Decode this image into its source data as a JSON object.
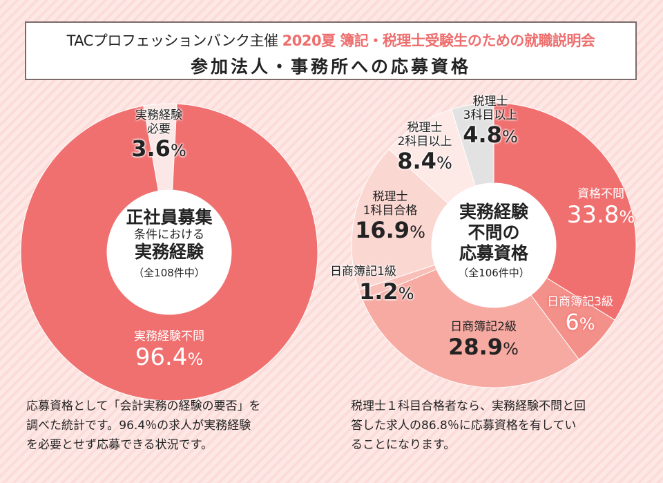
{
  "header": {
    "sponsor": "TACプロフェッションバンク主催",
    "event": "2020夏 簿記・税理士受験生のための就職説明会",
    "subtitle": "参加法人・事務所への応募資格"
  },
  "colors": {
    "accent": "#ee6e6e",
    "slice_main": "#f07070",
    "slice_light": "#fbe7e5",
    "slice_grey": "#e2e2e2"
  },
  "chart_data": [
    {
      "type": "pie",
      "variant": "donut",
      "title": "正社員募集 条件における 実務経験",
      "center": {
        "line1": "正社員募集",
        "line2": "条件における",
        "line3": "実務経験",
        "note": "（全108件中）"
      },
      "total_count": 108,
      "slices": [
        {
          "label": "実務経験不問",
          "value": 96.4,
          "display": "96.4",
          "color": "#f07070",
          "text_style": "light"
        },
        {
          "label": "実務経験必要",
          "label_lines": [
            "実務経験",
            "必要"
          ],
          "value": 3.6,
          "display": "3.6",
          "color": "#fbe7e5",
          "text_style": "dark"
        }
      ],
      "unit": "%"
    },
    {
      "type": "pie",
      "variant": "donut",
      "title": "実務経験不問の応募資格",
      "center": {
        "line1": "実務経験",
        "line2": "不問の",
        "line3": "応募資格",
        "note": "（全106件中）"
      },
      "total_count": 106,
      "slices": [
        {
          "label": "資格不問",
          "label_lines": [
            "資格不問"
          ],
          "value": 33.8,
          "display": "33.8",
          "color": "#f07070",
          "text_style": "light"
        },
        {
          "label": "日商簿記3級",
          "label_lines": [
            "日商簿記3級"
          ],
          "value": 6.0,
          "display": "6",
          "color": "#f39089",
          "text_style": "light"
        },
        {
          "label": "日商簿記2級",
          "label_lines": [
            "日商簿記2級"
          ],
          "value": 28.9,
          "display": "28.9",
          "color": "#f6aaa2",
          "text_style": "dark"
        },
        {
          "label": "日商簿記1級",
          "label_lines": [
            "日商簿記1級"
          ],
          "value": 1.2,
          "display": "1.2",
          "color": "#f8bfb8",
          "text_style": "dark"
        },
        {
          "label": "税理士1科目合格",
          "label_lines": [
            "税理士",
            "1科目合格"
          ],
          "value": 16.9,
          "display": "16.9",
          "color": "#fbd7d2",
          "text_style": "dark"
        },
        {
          "label": "税理士2科目以上",
          "label_lines": [
            "税理士",
            "2科目以上"
          ],
          "value": 8.4,
          "display": "8.4",
          "color": "#fde9e6",
          "text_style": "dark"
        },
        {
          "label": "税理士3科目以上",
          "label_lines": [
            "税理士",
            "3科目以上"
          ],
          "value": 4.8,
          "display": "4.8",
          "color": "#e2e2e2",
          "text_style": "dark"
        }
      ],
      "unit": "%"
    }
  ],
  "descriptions": {
    "left": [
      "応募資格として「会計実務の経験の要否」を",
      "調べた統計です。96.4％の求人が実務経験",
      "を必要とせず応募できる状況です。"
    ],
    "right": [
      "税理士１科目合格者なら、実務経験不問と回",
      "答した求人の86.8％に応募資格を有してい",
      "ることになります。"
    ]
  }
}
